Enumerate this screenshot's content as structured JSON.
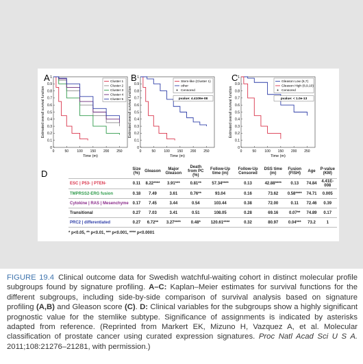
{
  "figure": {
    "panels": [
      {
        "label": "A",
        "ylabel": "Estimated overall survival function",
        "xlabel": "Time (m)",
        "xlim": [
          0,
          280
        ],
        "ylim": [
          0,
          1
        ],
        "xticks": [
          0,
          50,
          100,
          150,
          200,
          250
        ],
        "yticks": [
          0,
          0.1,
          0.2,
          0.3,
          0.4,
          0.5,
          0.6,
          0.7,
          0.8,
          0.9,
          1
        ],
        "series": [
          {
            "name": "Cluster 1",
            "color": "#d9334a",
            "x": [
              0,
              10,
              20,
              30,
              50,
              70,
              100,
              130
            ],
            "values": [
              1,
              0.85,
              0.65,
              0.45,
              0.3,
              0.2,
              0.12,
              0.1
            ]
          },
          {
            "name": "Cluster 2",
            "color": "#8a8a8a",
            "x": [
              0,
              20,
              50,
              100,
              150,
              200,
              250
            ],
            "values": [
              1,
              0.95,
              0.8,
              0.6,
              0.45,
              0.35,
              0.3
            ]
          },
          {
            "name": "Cluster 3",
            "color": "#2e9a4a",
            "x": [
              0,
              20,
              50,
              100,
              150,
              200,
              250
            ],
            "values": [
              1,
              0.9,
              0.7,
              0.45,
              0.3,
              0.2,
              0.18
            ]
          },
          {
            "name": "Cluster 4",
            "color": "#6a2a7a",
            "x": [
              0,
              20,
              50,
              100,
              150,
              200,
              250
            ],
            "values": [
              1,
              0.97,
              0.85,
              0.65,
              0.5,
              0.4,
              0.35
            ]
          },
          {
            "name": "Cluster 5",
            "color": "#2f3fa8",
            "x": [
              0,
              20,
              50,
              100,
              150,
              200,
              250
            ],
            "values": [
              1,
              0.98,
              0.9,
              0.72,
              0.55,
              0.45,
              0.4
            ]
          }
        ]
      },
      {
        "label": "B",
        "ylabel": "Estimated overall survival function",
        "xlabel": "Time (m)",
        "xlim": [
          0,
          280
        ],
        "ylim": [
          0,
          1
        ],
        "xticks": [
          0,
          50,
          100,
          150,
          200,
          250
        ],
        "yticks": [
          0,
          0.1,
          0.2,
          0.3,
          0.4,
          0.5,
          0.6,
          0.7,
          0.8,
          0.9,
          1
        ],
        "series": [
          {
            "name": "Stem-like (Cluster 1)",
            "color": "#d9334a",
            "x": [
              0,
              10,
              20,
              30,
              50,
              70,
              100,
              130
            ],
            "values": [
              1,
              0.85,
              0.65,
              0.45,
              0.3,
              0.2,
              0.12,
              0.1
            ]
          },
          {
            "name": "other",
            "color": "#2f3fa8",
            "x": [
              0,
              25,
              50,
              75,
              100,
              125,
              150,
              175,
              200,
              225,
              250
            ],
            "values": [
              1,
              0.97,
              0.9,
              0.8,
              0.68,
              0.58,
              0.5,
              0.42,
              0.36,
              0.32,
              0.3
            ]
          }
        ],
        "censored": "Censored",
        "pvalue": "pvalue: 4.4109e-08"
      },
      {
        "label": "C",
        "ylabel": "Estimated overall survival function",
        "xlabel": "Time (m)",
        "xlim": [
          0,
          280
        ],
        "ylim": [
          0,
          1
        ],
        "xticks": [
          0,
          50,
          100,
          150,
          200,
          250
        ],
        "yticks": [
          0,
          0.1,
          0.2,
          0.3,
          0.4,
          0.5,
          0.6,
          0.7,
          0.8,
          0.9,
          1
        ],
        "series": [
          {
            "name": "Gleason Low (6,7)",
            "color": "#2f3fa8",
            "x": [
              0,
              25,
              50,
              100,
              150,
              200,
              250
            ],
            "values": [
              1,
              0.98,
              0.92,
              0.75,
              0.6,
              0.5,
              0.45
            ]
          },
          {
            "name": "Gleason High (8,9,10)",
            "color": "#d9334a",
            "x": [
              0,
              10,
              25,
              50,
              75,
              100,
              150
            ],
            "values": [
              1,
              0.9,
              0.7,
              0.45,
              0.3,
              0.2,
              0.12
            ]
          }
        ],
        "censored": "Censored",
        "pvalue": "pvalue: < 1.0e-13"
      }
    ],
    "table": {
      "label": "D",
      "header": [
        "Size (%)",
        "Gleason",
        "Major Gleason",
        "Death from PC (%)",
        "Follow-Up time (m)",
        "Follow-Up Censored",
        "DSS time (m)",
        "Fusion (FISH)",
        "Age",
        "P-value (KM)"
      ],
      "rows": [
        {
          "name": "ESC | P53- | PTEN-",
          "color": "#d9334a",
          "cells": [
            "0.11",
            "8.22****",
            "3.91***",
            "0.81**",
            "57.34****",
            "0.13",
            "42.88****",
            "0.13",
            "74.84",
            "4.41E-008"
          ]
        },
        {
          "name": "TMPRSS2-ERG fusion",
          "color": "#2e9a4a",
          "cells": [
            "0.18",
            "7.49",
            "3.61",
            "0.76**",
            "93.04",
            "0.16",
            "73.62",
            "0.58****",
            "74.71",
            "0.005"
          ]
        },
        {
          "name": "Cytokine | RAS | Mesenchyme",
          "color": "#8a2a8a",
          "cells": [
            "0.17",
            "7.45",
            "3.44",
            "0.54",
            "103.44",
            "0.38",
            "72.00",
            "0.11",
            "72.46",
            "0.39"
          ]
        },
        {
          "name": "Transitional",
          "color": "#222222",
          "cells": [
            "0.27",
            "7.03",
            "3.41",
            "0.51",
            "108.05",
            "0.28",
            "69.16",
            "0.07**",
            "74.89",
            "0.17"
          ]
        },
        {
          "name": "PRC2 | differentiated",
          "color": "#2f3fa8",
          "cells": [
            "0.27",
            "6.72**",
            "3.27****",
            "0.48*",
            "120.61****",
            "0.32",
            "80.97",
            "0.04***",
            "73.2",
            "1"
          ]
        }
      ],
      "footnote": "* p<0.05, ** p<0.01, *** p<0.001, **** p<0.0001"
    }
  },
  "caption": {
    "label": "FIGURE 19.4",
    "parts": [
      "Clinical outcome data for Swedish watchful-waiting cohort in distinct molecular profile subgroups found by signature profiling. ",
      "A–C:",
      " Kaplan–Meier estimates for survival functions for the different subgroups, including side-by-side comparison of survival analysis based on signature profiling ",
      "(A,B)",
      " and Gleason score ",
      "(C)",
      ". ",
      "D:",
      " Clinical variables for the subgroups show a highly significant prognostic value for the stemlike subtype. Significance of assignments is indicated by asterisks adapted from reference. (Reprinted from Markert EK, Mizuno H, Vazquez A, et al. Molecular classification of prostate cancer using curated expression signatures. ",
      "Proc Natl Acad Sci U S A.",
      " 2011;108:21276–21281, with permission.)"
    ]
  }
}
